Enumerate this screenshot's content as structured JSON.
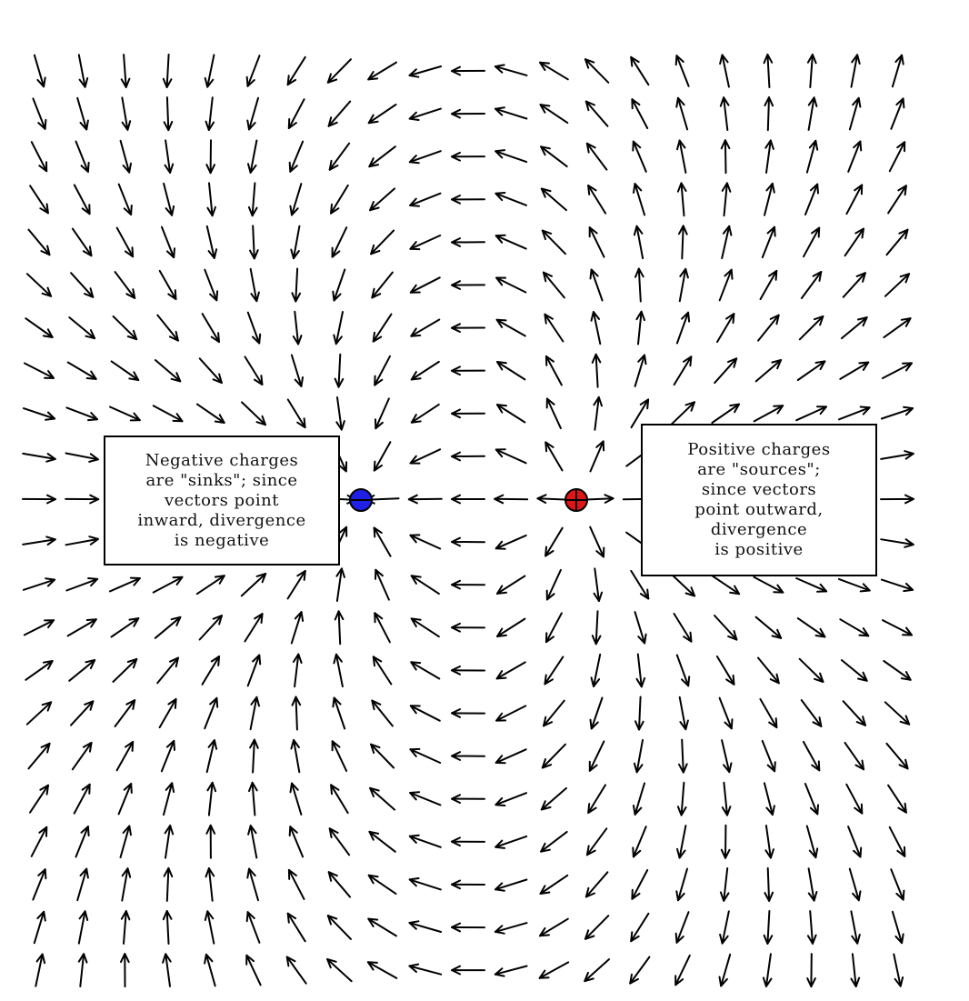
{
  "charges": {
    "negative": {
      "sign": "−",
      "color": "#1f1fe6",
      "x": -1.0,
      "y": 0.0
    },
    "positive": {
      "sign": "+",
      "color": "#e01515",
      "x": 1.0,
      "y": 0.0
    }
  },
  "field": {
    "arrow_color": "#000000",
    "columns": 22,
    "rows": 22
  },
  "boxes": {
    "negative": {
      "lines": [
        "Negative charges",
        "are \"sinks\"; since",
        "vectors point",
        "inward, divergence",
        "is negative"
      ]
    },
    "positive": {
      "lines": [
        "Positive charges",
        "are \"sources\";",
        "since vectors",
        "point outward,",
        "divergence",
        "is positive"
      ]
    }
  }
}
